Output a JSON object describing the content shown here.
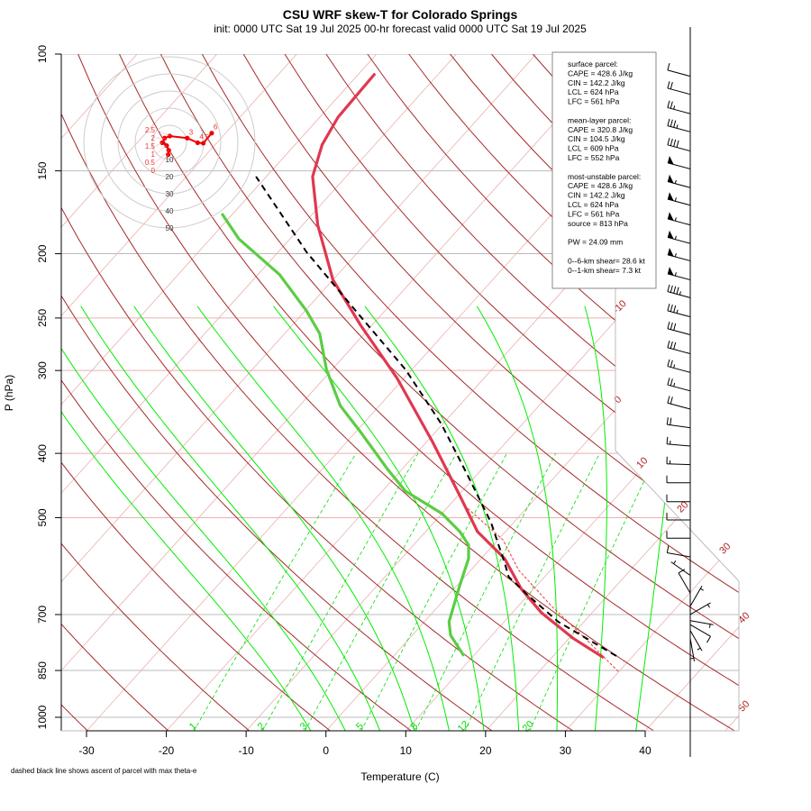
{
  "chart_data": {
    "type": "skew-t",
    "title": "CSU WRF skew-T for Colorado Springs",
    "subtitle": "init: 0000 UTC Sat 19 Jul 2025    00-hr forecast valid 0000 UTC Sat 19 Jul 2025",
    "xlabel": "Temperature (C)",
    "ylabel": "P (hPa)",
    "xlim": [
      -33,
      52
    ],
    "ylim": [
      1050,
      100
    ],
    "y_scale": "log",
    "xticks": [
      "-30",
      "-20",
      "-10",
      "0",
      "10",
      "20",
      "30",
      "40"
    ],
    "yticks": [
      "100",
      "150",
      "200",
      "250",
      "300",
      "400",
      "500",
      "700",
      "850",
      "1000"
    ],
    "isotherm_labels": [
      "-10",
      "0",
      "10",
      "20",
      "30",
      "40",
      "50"
    ],
    "mixing_ratio_labels": [
      "1",
      "2",
      "3",
      "5",
      "8",
      "12",
      "20"
    ],
    "temperature": [
      [
        813,
        26.5
      ],
      [
        760,
        20.5
      ],
      [
        695,
        13.6
      ],
      [
        640,
        8.4
      ],
      [
        576,
        2.9
      ],
      [
        525,
        -3.5
      ],
      [
        463,
        -9.8
      ],
      [
        384,
        -19.3
      ],
      [
        308,
        -30.9
      ],
      [
        256,
        -41.5
      ],
      [
        219,
        -50.0
      ],
      [
        181,
        -58.1
      ],
      [
        153,
        -64.2
      ],
      [
        137,
        -66.6
      ],
      [
        124.5,
        -67.7
      ],
      [
        107,
        -68.0
      ]
    ],
    "dewpoint": [
      [
        808,
        8.8
      ],
      [
        752,
        4.8
      ],
      [
        718,
        3.1
      ],
      [
        633,
        0.35
      ],
      [
        576,
        -1.6
      ],
      [
        550,
        -3.1
      ],
      [
        525,
        -5.7
      ],
      [
        493,
        -10.0
      ],
      [
        456,
        -17.1
      ],
      [
        422,
        -21.9
      ],
      [
        372,
        -29.3
      ],
      [
        339,
        -34.9
      ],
      [
        299,
        -40.7
      ],
      [
        264,
        -45.6
      ],
      [
        244,
        -49.8
      ],
      [
        215,
        -57.3
      ],
      [
        190,
        -66.4
      ],
      [
        174,
        -71.4
      ]
    ],
    "parcel_max_theta_e": [
      [
        808,
        27.9
      ],
      [
        718,
        16.8
      ],
      [
        653,
        9.8
      ],
      [
        614,
        5.5
      ],
      [
        586,
        3.5
      ],
      [
        509,
        -2.8
      ],
      [
        435,
        -10.7
      ],
      [
        361,
        -20.2
      ],
      [
        299,
        -30.8
      ],
      [
        248,
        -42.6
      ],
      [
        199,
        -56.4
      ],
      [
        153,
        -71.3
      ]
    ],
    "parcel_surface": [
      [
        853,
        29.9
      ],
      [
        760,
        22.0
      ],
      [
        680,
        14.2
      ],
      [
        600,
        6.0
      ],
      [
        540,
        0.6
      ],
      [
        480,
        -8.0
      ]
    ],
    "winds_kt": [
      [
        108,
        255,
        10
      ],
      [
        115,
        255,
        20
      ],
      [
        123,
        255,
        25
      ],
      [
        131,
        255,
        35
      ],
      [
        140,
        255,
        40
      ],
      [
        149,
        255,
        50
      ],
      [
        159,
        255,
        55
      ],
      [
        169,
        255,
        55
      ],
      [
        181,
        255,
        55
      ],
      [
        193,
        255,
        55
      ],
      [
        205,
        255,
        55
      ],
      [
        219,
        255,
        55
      ],
      [
        233,
        255,
        45
      ],
      [
        249,
        255,
        35
      ],
      [
        265,
        255,
        30
      ],
      [
        283,
        255,
        30
      ],
      [
        302,
        255,
        25
      ],
      [
        322,
        255,
        25
      ],
      [
        343,
        255,
        20
      ],
      [
        366,
        262,
        20
      ],
      [
        390,
        265,
        15
      ],
      [
        416,
        268,
        15
      ],
      [
        443,
        270,
        10
      ],
      [
        473,
        270,
        10
      ],
      [
        504,
        270,
        10
      ],
      [
        537,
        270,
        10
      ],
      [
        573,
        260,
        10
      ],
      [
        611,
        235,
        5
      ],
      [
        650,
        210,
        10
      ],
      [
        680,
        150,
        5
      ],
      [
        700,
        120,
        5
      ],
      [
        715,
        80,
        5
      ],
      [
        725,
        60,
        10
      ],
      [
        740,
        30,
        5
      ],
      [
        760,
        10,
        5
      ]
    ],
    "hodograph": {
      "ring_labels": [
        "10",
        "20",
        "30",
        "40",
        "50"
      ],
      "points": [
        {
          "label": "0",
          "u": -0.7,
          "v": -7.2
        },
        {
          "label": "0.5",
          "u": -0.4,
          "v": -4.6
        },
        {
          "label": "1",
          "u": -1.6,
          "v": -1.9
        },
        {
          "label": "1.5",
          "u": -4.2,
          "v": -0.2
        },
        {
          "label": "2",
          "u": -2.8,
          "v": 2.5
        },
        {
          "label": "2.5",
          "u": 0.2,
          "v": 3.7
        },
        {
          "label": "3",
          "u": 10.4,
          "v": 2.5
        },
        {
          "label": "4",
          "u": 16.5,
          "v": -0.2
        },
        {
          "label": "5",
          "u": 19.8,
          "v": -0.5
        },
        {
          "label": "6",
          "u": 24.7,
          "v": 5.4
        }
      ]
    },
    "colors": {
      "temperature": "#e0384f",
      "dewpoint": "#5ccc44",
      "parcel": "#000000",
      "dry_adiabat": "#a52a2a",
      "isotherm": "#e8b0b0",
      "moist_adiabat": "#00ee00",
      "mixing_ratio": "#00dd00"
    }
  },
  "info_box": {
    "lines": [
      "surface parcel:",
      "CAPE = 428.6 J/kg",
      "CIN = 142.2 J/kg",
      "LCL = 624 hPa",
      "LFC = 561 hPa",
      "",
      "mean-layer parcel:",
      "CAPE = 320.8 J/kg",
      "CIN = 104.5 J/kg",
      "LCL = 609 hPa",
      "LFC = 552 hPa",
      "",
      "most-unstable parcel:",
      "CAPE = 428.6 J/kg",
      "CIN = 142.2 J/kg",
      "LCL = 624 hPa",
      "LFC = 561 hPa",
      "source = 813 hPa",
      "",
      "PW =  24.09 mm",
      "",
      "0--6-km shear= 28.6 kt",
      "0--1-km shear= 7.3 kt"
    ]
  },
  "footnote": "dashed black line shows ascent of parcel with max theta-e"
}
